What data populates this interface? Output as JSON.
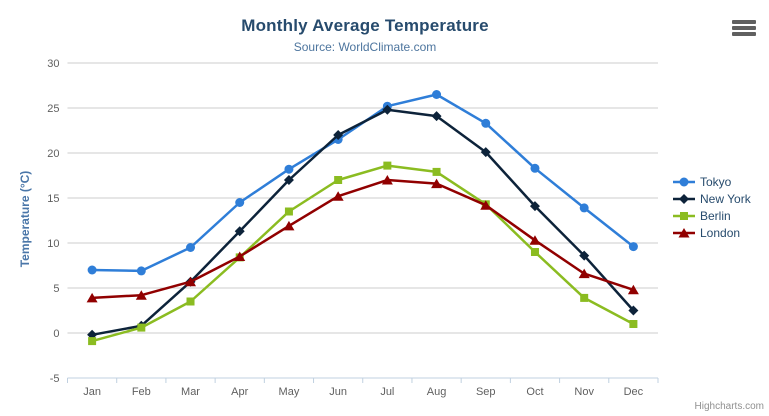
{
  "header": {
    "title": "Monthly Average Temperature",
    "subtitle": "Source: WorldClimate.com"
  },
  "y_axis": {
    "title": "Temperature (°C)"
  },
  "credits": {
    "label": "Highcharts.com"
  },
  "chart_data": {
    "type": "line",
    "title": "Monthly Average Temperature",
    "subtitle": "Source: WorldClimate.com",
    "xlabel": "",
    "ylabel": "Temperature (°C)",
    "categories": [
      "Jan",
      "Feb",
      "Mar",
      "Apr",
      "May",
      "Jun",
      "Jul",
      "Aug",
      "Sep",
      "Oct",
      "Nov",
      "Dec"
    ],
    "ylim": [
      -5,
      30
    ],
    "yticks": [
      -5,
      0,
      5,
      10,
      15,
      20,
      25,
      30
    ],
    "grid": true,
    "legend_position": "right",
    "series": [
      {
        "name": "Tokyo",
        "color": "#2f7ed8",
        "marker": "circle",
        "values": [
          7.0,
          6.9,
          9.5,
          14.5,
          18.2,
          21.5,
          25.2,
          26.5,
          23.3,
          18.3,
          13.9,
          9.6
        ]
      },
      {
        "name": "New York",
        "color": "#0d233a",
        "marker": "diamond",
        "values": [
          -0.2,
          0.8,
          5.7,
          11.3,
          17.0,
          22.0,
          24.8,
          24.1,
          20.1,
          14.1,
          8.6,
          2.5
        ]
      },
      {
        "name": "Berlin",
        "color": "#8bbc21",
        "marker": "square",
        "values": [
          -0.9,
          0.6,
          3.5,
          8.4,
          13.5,
          17.0,
          18.6,
          17.9,
          14.3,
          9.0,
          3.9,
          1.0
        ]
      },
      {
        "name": "London",
        "color": "#910000",
        "marker": "triangle",
        "values": [
          3.9,
          4.2,
          5.7,
          8.5,
          11.9,
          15.2,
          17.0,
          16.6,
          14.2,
          10.3,
          6.6,
          4.8
        ]
      }
    ]
  },
  "colors": {
    "grid_line": "#cccccc",
    "axis_line": "#c0d0e0",
    "title_text": "#274b6d",
    "subtitle_text": "#4d759e",
    "axis_label": "#606060",
    "axis_title": "#4a76a8",
    "legend_text": "#274b6d",
    "credits_text": "#909090",
    "menu_icon": "#606060"
  }
}
